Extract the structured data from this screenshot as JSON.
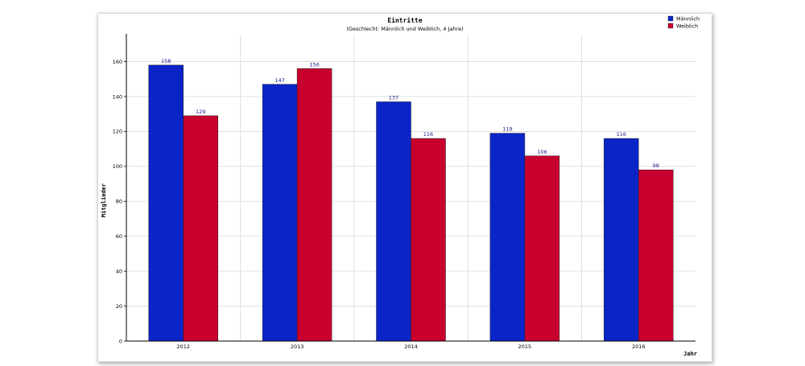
{
  "chart_data": {
    "type": "bar",
    "title": "Eintritte",
    "subtitle": "(Geschlecht: Männlich und Weiblich, 4 Jahre)",
    "xlabel": "Jahr",
    "ylabel": "Mitglieder",
    "categories": [
      "2012",
      "2013",
      "2014",
      "2015",
      "2016"
    ],
    "series": [
      {
        "name": "Männlich",
        "color": "#0a24c8",
        "values": [
          158,
          147,
          137,
          119,
          116
        ]
      },
      {
        "name": "Weiblich",
        "color": "#c8002e",
        "values": [
          129,
          156,
          116,
          106,
          98
        ]
      }
    ],
    "ylim": [
      0,
      175
    ],
    "yticks": [
      0,
      20,
      40,
      60,
      80,
      100,
      120,
      140,
      160
    ],
    "grid": true,
    "legend_position": "top-right",
    "data_labels": true
  }
}
